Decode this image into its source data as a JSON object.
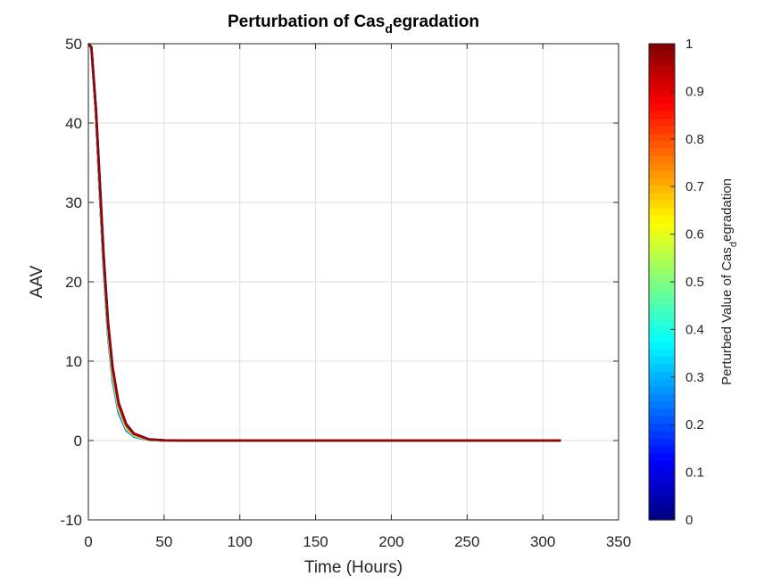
{
  "chart_data": {
    "type": "line",
    "title": {
      "main": "Perturbation of Cas",
      "sub": "d",
      "rest": "egradation"
    },
    "xlabel": "Time (Hours)",
    "ylabel": "AAV",
    "xlim": [
      0,
      350
    ],
    "ylim": [
      -10,
      50
    ],
    "xticks": [
      0,
      50,
      100,
      150,
      200,
      250,
      300,
      350
    ],
    "yticks": [
      -10,
      0,
      10,
      20,
      30,
      40,
      50
    ],
    "grid": true,
    "colormap": "jet",
    "colorbar": {
      "label": {
        "main": "Perturbed Value of Cas",
        "sub": "d",
        "rest": "egradation"
      },
      "range": [
        0,
        1
      ],
      "ticks": [
        0,
        0.1,
        0.2,
        0.3,
        0.4,
        0.5,
        0.6,
        0.7,
        0.8,
        0.9,
        1
      ]
    },
    "series_parameter_values": [
      0.1,
      0.2,
      0.3,
      0.4,
      0.5,
      0.6,
      0.7,
      0.8,
      0.9,
      1.0
    ],
    "x": [
      0,
      2,
      5,
      8,
      10,
      13,
      16,
      20,
      25,
      30,
      40,
      50,
      60,
      80,
      100,
      150,
      200,
      250,
      312
    ],
    "series": [
      {
        "values": [
          50,
          49.4,
          41,
          29.4,
          22,
          13.3,
          7.6,
          3.5,
          1.3,
          0.5,
          0.07,
          0.01,
          0,
          0,
          0,
          0,
          0,
          0,
          0
        ]
      },
      {
        "values": [
          50,
          49.4,
          41.1,
          29.5,
          22.1,
          13.4,
          7.7,
          3.6,
          1.35,
          0.52,
          0.08,
          0.01,
          0,
          0,
          0,
          0,
          0,
          0,
          0
        ]
      },
      {
        "values": [
          50,
          49.4,
          41.2,
          29.7,
          22.3,
          13.6,
          7.9,
          3.7,
          1.4,
          0.55,
          0.08,
          0.01,
          0,
          0,
          0,
          0,
          0,
          0,
          0
        ]
      },
      {
        "values": [
          50,
          49.4,
          41.3,
          29.9,
          22.5,
          13.8,
          8.1,
          3.85,
          1.5,
          0.6,
          0.09,
          0.01,
          0,
          0,
          0,
          0,
          0,
          0,
          0
        ]
      },
      {
        "values": [
          50,
          49.5,
          41.4,
          30.1,
          22.7,
          14.0,
          8.3,
          4.0,
          1.6,
          0.65,
          0.1,
          0.02,
          0,
          0,
          0,
          0,
          0,
          0,
          0
        ]
      },
      {
        "values": [
          50,
          49.5,
          41.5,
          30.3,
          22.9,
          14.2,
          8.5,
          4.15,
          1.7,
          0.7,
          0.11,
          0.02,
          0,
          0,
          0,
          0,
          0,
          0,
          0
        ]
      },
      {
        "values": [
          50,
          49.5,
          41.6,
          30.5,
          23.1,
          14.4,
          8.7,
          4.3,
          1.8,
          0.75,
          0.12,
          0.02,
          0,
          0,
          0,
          0,
          0,
          0,
          0
        ]
      },
      {
        "values": [
          50,
          49.5,
          41.7,
          30.7,
          23.3,
          14.6,
          8.9,
          4.45,
          1.9,
          0.8,
          0.14,
          0.02,
          0,
          0,
          0,
          0,
          0,
          0,
          0
        ]
      },
      {
        "values": [
          50,
          49.6,
          41.8,
          30.9,
          23.5,
          14.8,
          9.1,
          4.6,
          2.0,
          0.85,
          0.15,
          0.03,
          0,
          0,
          0,
          0,
          0,
          0,
          0
        ]
      },
      {
        "values": [
          50,
          49.6,
          41.9,
          31.1,
          23.7,
          15.0,
          9.3,
          4.75,
          2.1,
          0.9,
          0.16,
          0.03,
          0,
          0,
          0,
          0,
          0,
          0,
          0
        ]
      }
    ]
  }
}
